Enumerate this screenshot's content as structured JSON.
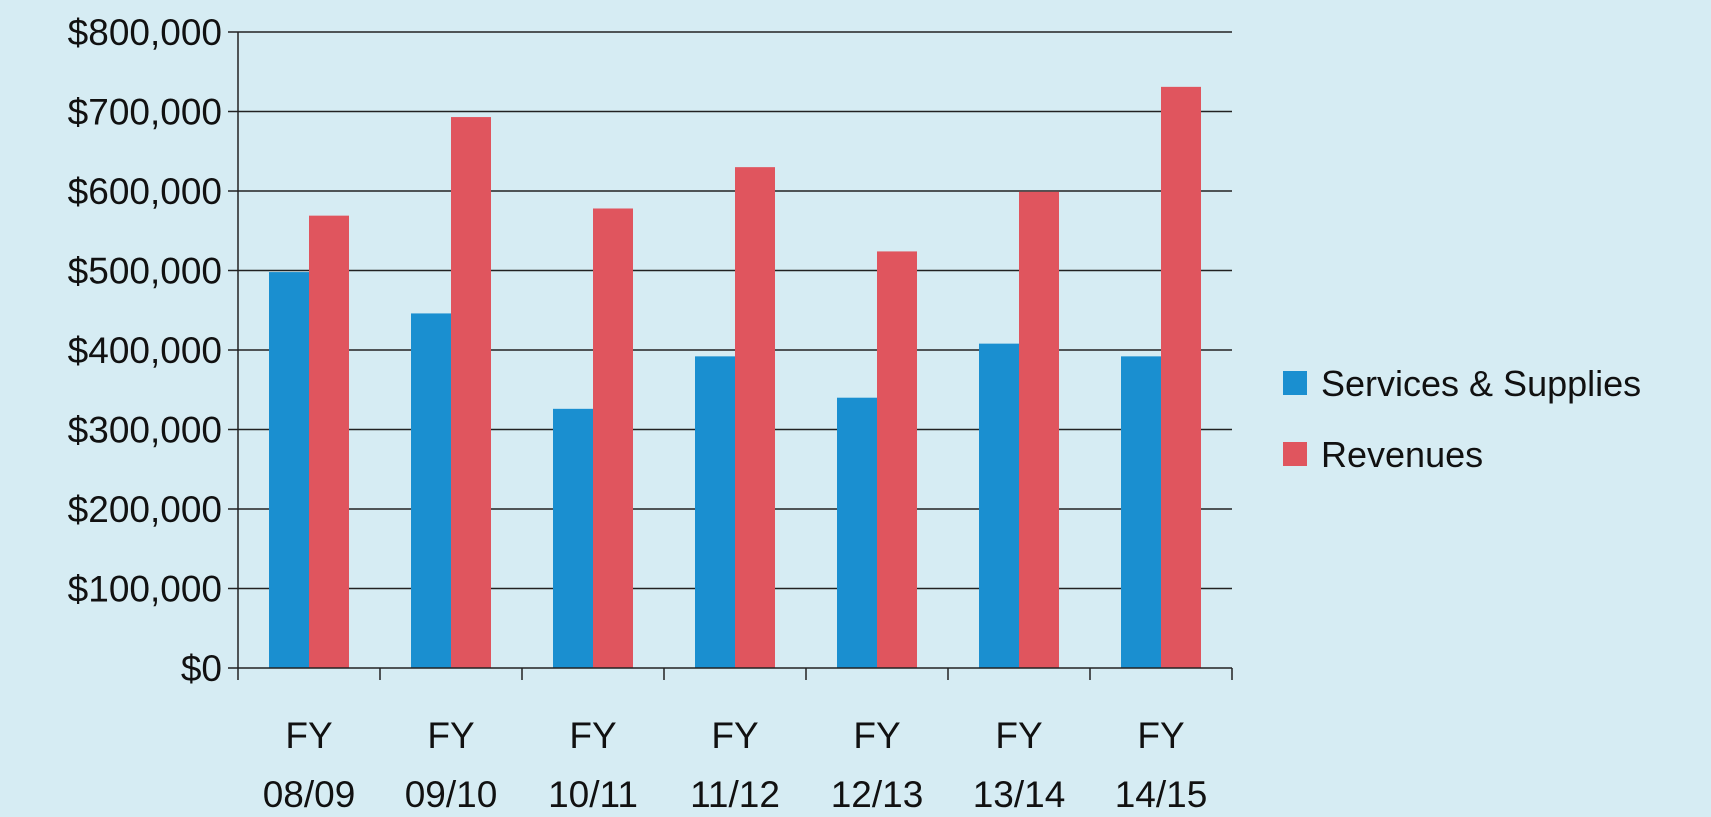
{
  "chart_data": {
    "type": "bar",
    "title": "",
    "xlabel": "",
    "ylabel": "",
    "categories": [
      [
        "FY",
        "08/09"
      ],
      [
        "FY",
        "09/10"
      ],
      [
        "FY",
        "10/11"
      ],
      [
        "FY",
        "11/12"
      ],
      [
        "FY",
        "12/13"
      ],
      [
        "FY",
        "13/14"
      ],
      [
        "FY",
        "14/15"
      ]
    ],
    "series": [
      {
        "name": "Services & Supplies",
        "color": "#1a8fd0",
        "values": [
          498000,
          446000,
          326000,
          392000,
          340000,
          408000,
          392000
        ]
      },
      {
        "name": "Revenues",
        "color": "#e0555e",
        "values": [
          569000,
          693000,
          578000,
          630000,
          524000,
          599000,
          731000
        ]
      }
    ],
    "ylim": [
      0,
      800000
    ],
    "yticks": [
      0,
      100000,
      200000,
      300000,
      400000,
      500000,
      600000,
      700000,
      800000
    ],
    "ytick_labels": [
      "$0",
      "$100,000",
      "$200,000",
      "$300,000",
      "$400,000",
      "$500,000",
      "$600,000",
      "$700,000",
      "$800,000"
    ],
    "grid": true,
    "legend_position": "right"
  }
}
